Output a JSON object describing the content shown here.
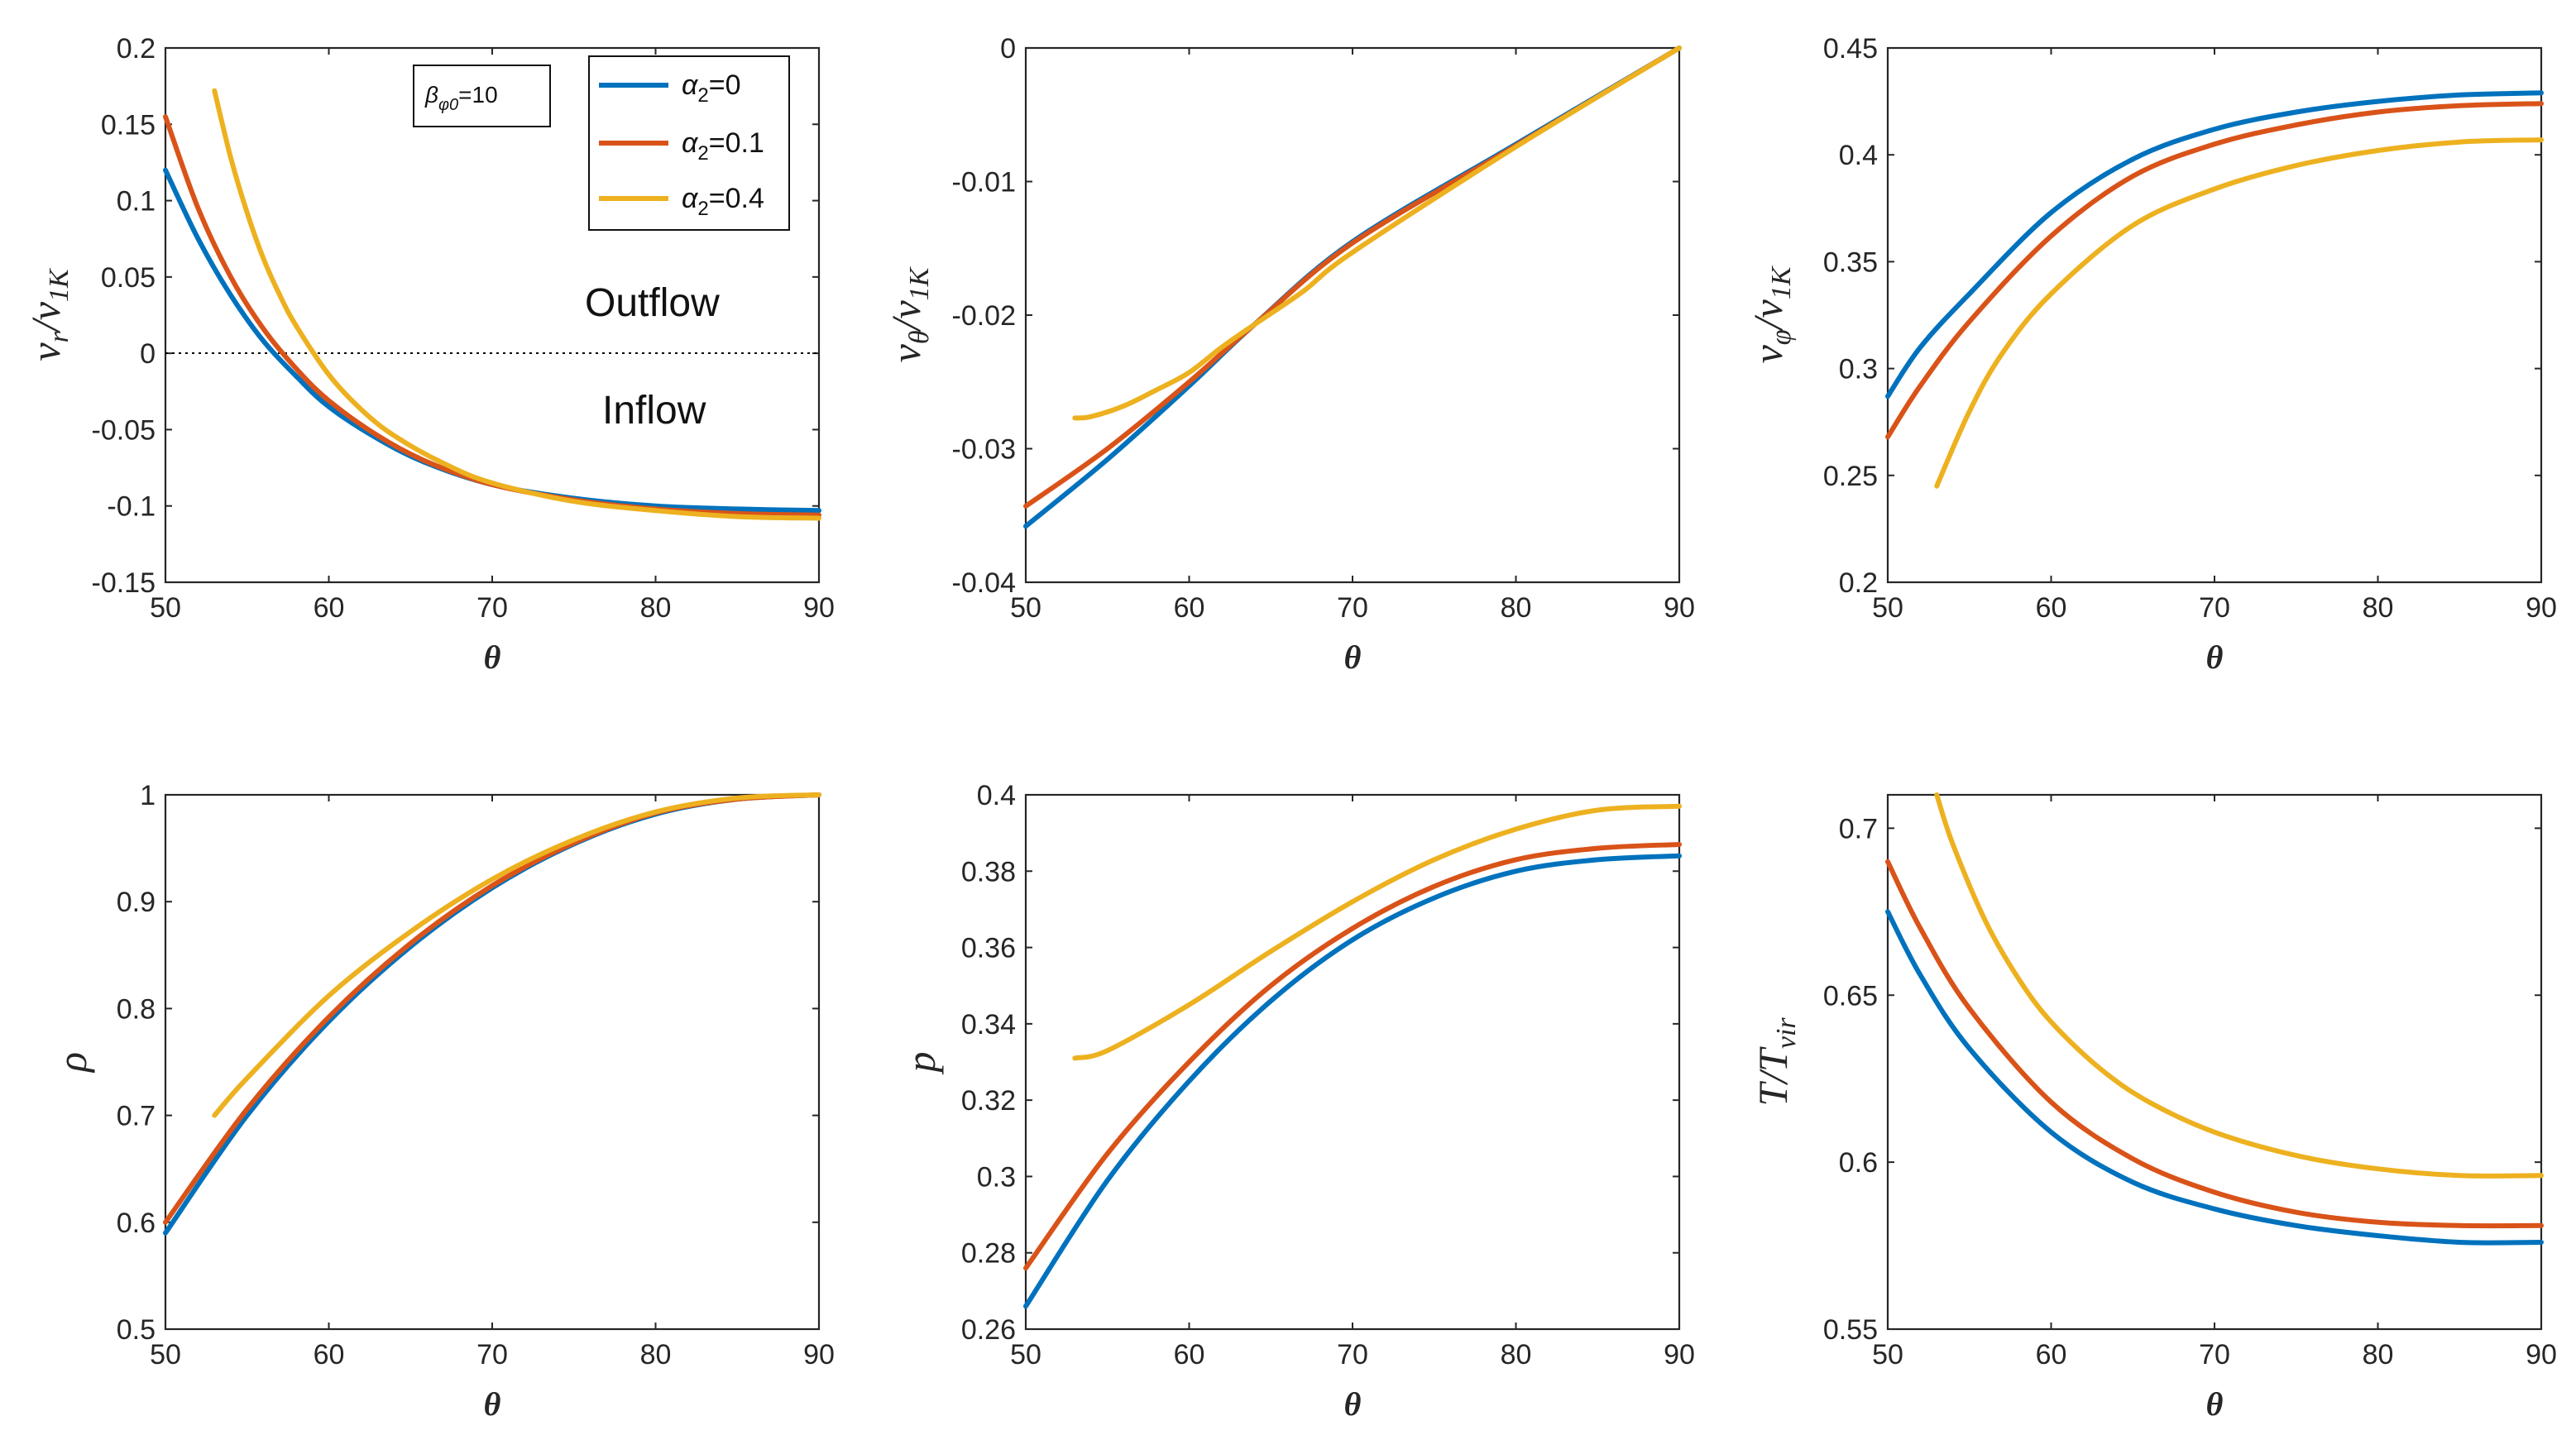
{
  "chart_data": [
    {
      "type": "line",
      "ylabel": "v_r/v_1K",
      "xlabel": "θ",
      "xlim": [
        50,
        90
      ],
      "ylim": [
        -0.15,
        0.2
      ],
      "xticks": [
        "50",
        "60",
        "70",
        "80",
        "90"
      ],
      "yticks": [
        "-0.15",
        "-0.1",
        "-0.05",
        "0",
        "0.05",
        "0.1",
        "0.15",
        "0.2"
      ],
      "reference_line_y": 0,
      "annotations": [
        "Outflow",
        "Inflow"
      ],
      "parameter_box": "β_φ0=10",
      "legend": [
        "α_2=0",
        "α_2=0.1",
        "α_2=0.4"
      ],
      "series": [
        {
          "name": "α_2=0",
          "x": [
            50,
            52,
            54,
            56,
            58,
            60,
            63,
            66,
            70,
            75,
            80,
            85,
            90
          ],
          "y": [
            0.12,
            0.075,
            0.038,
            0.008,
            -0.015,
            -0.035,
            -0.056,
            -0.072,
            -0.086,
            -0.095,
            -0.1,
            -0.102,
            -0.103
          ]
        },
        {
          "name": "α_2=0.1",
          "x": [
            50,
            52,
            54,
            56,
            58,
            60,
            63,
            66,
            70,
            75,
            80,
            85,
            90
          ],
          "y": [
            0.155,
            0.095,
            0.05,
            0.016,
            -0.01,
            -0.031,
            -0.054,
            -0.071,
            -0.086,
            -0.096,
            -0.102,
            -0.105,
            -0.106
          ]
        },
        {
          "name": "α_2=0.4",
          "x": [
            53,
            54,
            55,
            56,
            57,
            58,
            60,
            62,
            64,
            67,
            70,
            75,
            80,
            85,
            90
          ],
          "y": [
            0.172,
            0.128,
            0.092,
            0.062,
            0.038,
            0.018,
            -0.014,
            -0.037,
            -0.054,
            -0.072,
            -0.085,
            -0.097,
            -0.103,
            -0.107,
            -0.108
          ]
        }
      ]
    },
    {
      "type": "line",
      "ylabel": "v_θ/v_1K",
      "xlabel": "θ",
      "xlim": [
        50,
        90
      ],
      "ylim": [
        -0.04,
        0
      ],
      "xticks": [
        "50",
        "60",
        "70",
        "80",
        "90"
      ],
      "yticks": [
        "-0.04",
        "-0.03",
        "-0.02",
        "-0.01",
        "0"
      ],
      "series": [
        {
          "name": "α_2=0",
          "x": [
            50,
            55,
            60,
            64,
            70,
            80,
            90
          ],
          "y": [
            -0.0358,
            -0.0308,
            -0.0253,
            -0.0207,
            -0.0145,
            -0.0072,
            0
          ]
        },
        {
          "name": "α_2=0.1",
          "x": [
            50,
            55,
            60,
            64,
            70,
            80,
            90
          ],
          "y": [
            -0.0343,
            -0.03,
            -0.025,
            -0.0207,
            -0.0146,
            -0.0073,
            0
          ]
        },
        {
          "name": "α_2=0.4",
          "x": [
            53,
            54,
            56,
            58,
            60,
            62,
            64,
            67,
            70,
            80,
            90
          ],
          "y": [
            -0.0277,
            -0.0276,
            -0.0268,
            -0.0256,
            -0.0243,
            -0.0224,
            -0.0207,
            -0.0182,
            -0.0153,
            -0.0074,
            0
          ]
        }
      ]
    },
    {
      "type": "line",
      "ylabel": "v_φ/v_1K",
      "xlabel": "θ",
      "xlim": [
        50,
        90
      ],
      "ylim": [
        0.2,
        0.45
      ],
      "xticks": [
        "50",
        "60",
        "70",
        "80",
        "90"
      ],
      "yticks": [
        "0.2",
        "0.25",
        "0.3",
        "0.35",
        "0.4",
        "0.45"
      ],
      "series": [
        {
          "name": "α_2=0",
          "x": [
            50,
            52,
            55,
            60,
            65,
            70,
            75,
            80,
            85,
            90
          ],
          "y": [
            0.287,
            0.31,
            0.335,
            0.373,
            0.398,
            0.412,
            0.42,
            0.425,
            0.428,
            0.429
          ]
        },
        {
          "name": "α_2=0.1",
          "x": [
            50,
            52,
            55,
            60,
            65,
            70,
            75,
            80,
            85,
            90
          ],
          "y": [
            0.268,
            0.292,
            0.322,
            0.362,
            0.39,
            0.405,
            0.414,
            0.42,
            0.423,
            0.424
          ]
        },
        {
          "name": "α_2=0.4",
          "x": [
            53,
            55,
            57,
            60,
            65,
            70,
            75,
            80,
            85,
            90
          ],
          "y": [
            0.245,
            0.28,
            0.307,
            0.335,
            0.367,
            0.384,
            0.395,
            0.402,
            0.406,
            0.407
          ]
        }
      ]
    },
    {
      "type": "line",
      "ylabel": "ρ",
      "xlabel": "θ",
      "xlim": [
        50,
        90
      ],
      "ylim": [
        0.5,
        1
      ],
      "xticks": [
        "50",
        "60",
        "70",
        "80",
        "90"
      ],
      "yticks": [
        "0.5",
        "0.6",
        "0.7",
        "0.8",
        "0.9",
        "1"
      ],
      "series": [
        {
          "name": "α_2=0",
          "x": [
            50,
            55,
            60,
            65,
            70,
            75,
            80,
            85,
            90
          ],
          "y": [
            0.59,
            0.7,
            0.788,
            0.858,
            0.913,
            0.954,
            0.982,
            0.996,
            1.0
          ]
        },
        {
          "name": "α_2=0.1",
          "x": [
            50,
            55,
            60,
            65,
            70,
            75,
            80,
            85,
            90
          ],
          "y": [
            0.6,
            0.706,
            0.792,
            0.861,
            0.915,
            0.955,
            0.983,
            0.996,
            1.0
          ]
        },
        {
          "name": "α_2=0.4",
          "x": [
            53,
            55,
            60,
            65,
            70,
            75,
            80,
            85,
            90
          ],
          "y": [
            0.7,
            0.735,
            0.812,
            0.872,
            0.921,
            0.958,
            0.984,
            0.997,
            1.0
          ]
        }
      ]
    },
    {
      "type": "line",
      "ylabel": "p",
      "xlabel": "θ",
      "xlim": [
        50,
        90
      ],
      "ylim": [
        0.26,
        0.4
      ],
      "xticks": [
        "50",
        "60",
        "70",
        "80",
        "90"
      ],
      "yticks": [
        "0.26",
        "0.28",
        "0.3",
        "0.32",
        "0.34",
        "0.36",
        "0.38",
        "0.4"
      ],
      "series": [
        {
          "name": "α_2=0",
          "x": [
            50,
            55,
            60,
            65,
            70,
            75,
            80,
            85,
            90
          ],
          "y": [
            0.266,
            0.299,
            0.325,
            0.346,
            0.362,
            0.373,
            0.38,
            0.383,
            0.384
          ]
        },
        {
          "name": "α_2=0.1",
          "x": [
            50,
            55,
            60,
            65,
            70,
            75,
            80,
            85,
            90
          ],
          "y": [
            0.276,
            0.306,
            0.33,
            0.35,
            0.365,
            0.376,
            0.383,
            0.386,
            0.387
          ]
        },
        {
          "name": "α_2=0.4",
          "x": [
            53,
            55,
            60,
            65,
            70,
            75,
            80,
            85,
            90
          ],
          "y": [
            0.331,
            0.333,
            0.345,
            0.359,
            0.372,
            0.383,
            0.391,
            0.396,
            0.397
          ]
        }
      ]
    },
    {
      "type": "line",
      "ylabel": "T/T_vir",
      "xlabel": "θ",
      "xlim": [
        50,
        90
      ],
      "ylim": [
        0.55,
        0.71
      ],
      "xticks": [
        "50",
        "60",
        "70",
        "80",
        "90"
      ],
      "yticks": [
        "0.55",
        "0.6",
        "0.65",
        "0.7"
      ],
      "series": [
        {
          "name": "α_2=0",
          "x": [
            50,
            52,
            55,
            60,
            65,
            70,
            75,
            80,
            85,
            90
          ],
          "y": [
            0.675,
            0.656,
            0.634,
            0.609,
            0.594,
            0.586,
            0.581,
            0.578,
            0.576,
            0.576
          ]
        },
        {
          "name": "α_2=0.1",
          "x": [
            50,
            52,
            55,
            60,
            65,
            70,
            75,
            80,
            85,
            90
          ],
          "y": [
            0.69,
            0.67,
            0.646,
            0.618,
            0.601,
            0.591,
            0.585,
            0.582,
            0.581,
            0.581
          ]
        },
        {
          "name": "α_2=0.4",
          "x": [
            53,
            54,
            56,
            58,
            60,
            63,
            66,
            70,
            75,
            80,
            85,
            90
          ],
          "y": [
            0.71,
            0.695,
            0.672,
            0.655,
            0.642,
            0.628,
            0.618,
            0.609,
            0.602,
            0.598,
            0.596,
            0.596
          ]
        }
      ]
    }
  ],
  "legend_colors": [
    "#0072BD",
    "#D95319",
    "#EDB120"
  ]
}
